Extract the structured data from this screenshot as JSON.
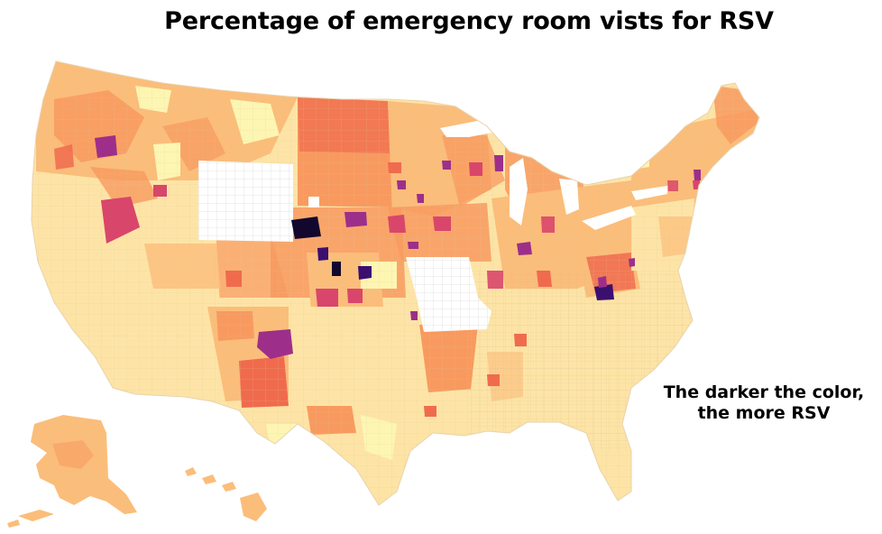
{
  "title": "Percentage of emergency room vists for RSV",
  "legend_note": {
    "line1": "The darker the color,",
    "line2": "the more RSV"
  },
  "colors": {
    "background": "#ffffff",
    "border": "#d9c39a",
    "no_data": "#ffffff",
    "scale_lightest": "#fdf6b2",
    "scale_light": "#fde4a6",
    "scale_mid_light": "#fbbd7a",
    "scale_mid": "#f89a5f",
    "scale_mid_dark": "#f06b4e",
    "scale_dark": "#d9466b",
    "scale_darker": "#9d2f8a",
    "scale_darkest": "#3b0f70",
    "scale_black": "#12082e"
  }
}
